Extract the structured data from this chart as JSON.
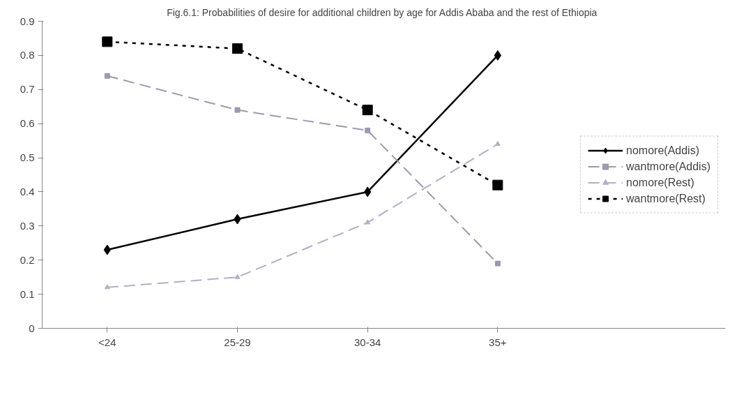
{
  "chart_data": {
    "type": "line",
    "title": "Fig.6.1:  Probabilities of desire for additional children by age for Addis Ababa and the rest of Ethiopia",
    "categories": [
      "<24",
      "25-29",
      "30-34",
      "35+"
    ],
    "ylim": [
      0,
      0.9
    ],
    "yticks": [
      0,
      0.1,
      0.2,
      0.3,
      0.4,
      0.5,
      0.6,
      0.7,
      0.8,
      0.9
    ],
    "grid": false,
    "legend": "right",
    "series": [
      {
        "name": "nomore(Addis)",
        "color": "#000000",
        "marker": "diamond",
        "line_style": "solid",
        "values": [
          0.23,
          0.32,
          0.4,
          0.8
        ]
      },
      {
        "name": "wantmore(Addis)",
        "color": "#9a9ab0",
        "marker": "square",
        "line_style": "dashed",
        "values": [
          0.74,
          0.64,
          0.58,
          0.19
        ]
      },
      {
        "name": "nomore(Rest)",
        "color": "#b0b0c8",
        "marker": "triangle",
        "line_style": "dashed",
        "values": [
          0.12,
          0.15,
          0.31,
          0.54
        ]
      },
      {
        "name": "wantmore(Rest)",
        "color": "#000000",
        "marker": "square",
        "line_style": "dotted",
        "values": [
          0.84,
          0.82,
          0.64,
          0.42
        ]
      }
    ]
  }
}
